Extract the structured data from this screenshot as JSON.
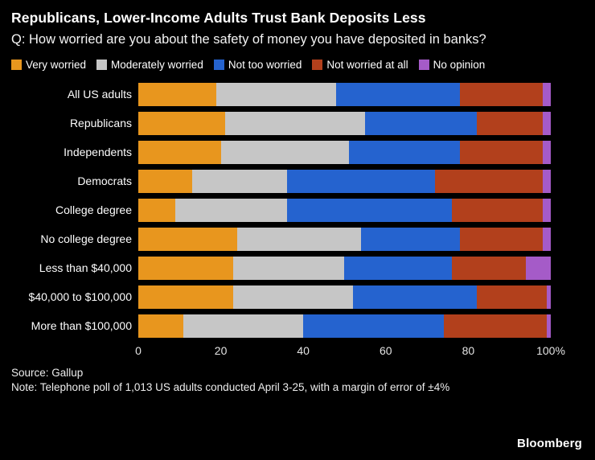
{
  "header": {
    "title": "Republicans, Lower-Income Adults Trust Bank Deposits Less",
    "subtitle": "Q: How worried are you about the safety of money you have deposited in banks?"
  },
  "colors": {
    "very_worried": "#E8961E",
    "moderately_worried": "#C6C6C6",
    "not_too_worried": "#2563CF",
    "not_worried_at_all": "#B2401C",
    "no_opinion": "#A55BC8",
    "background": "#000000",
    "text": "#FFFFFF"
  },
  "chart_data": {
    "type": "bar",
    "orientation": "horizontal",
    "stacked": true,
    "title": "Republicans, Lower-Income Adults Trust Bank Deposits Less",
    "xlabel": "",
    "ylabel": "",
    "xlim": [
      0,
      100
    ],
    "x_ticks": [
      "0",
      "20",
      "40",
      "60",
      "80",
      "100%"
    ],
    "legend_position": "top",
    "grid": false,
    "categories": [
      "All US adults",
      "Republicans",
      "Independents",
      "Democrats",
      "College degree",
      "No college degree",
      "Less than $40,000",
      "$40,000 to $100,000",
      "More than $100,000"
    ],
    "series": [
      {
        "name": "Very worried",
        "color_key": "very_worried",
        "values": [
          19,
          21,
          20,
          13,
          9,
          24,
          23,
          23,
          11
        ]
      },
      {
        "name": "Moderately worried",
        "color_key": "moderately_worried",
        "values": [
          29,
          34,
          31,
          23,
          27,
          30,
          27,
          29,
          29
        ]
      },
      {
        "name": "Not too worried",
        "color_key": "not_too_worried",
        "values": [
          30,
          27,
          27,
          36,
          40,
          24,
          26,
          30,
          34
        ]
      },
      {
        "name": "Not worried at all",
        "color_key": "not_worried_at_all",
        "values": [
          20,
          16,
          20,
          26,
          22,
          20,
          18,
          17,
          25
        ]
      },
      {
        "name": "No opinion",
        "color_key": "no_opinion",
        "values": [
          2,
          2,
          2,
          2,
          2,
          2,
          6,
          1,
          1
        ]
      }
    ]
  },
  "footer": {
    "source": "Source: Gallup",
    "note": "Note: Telephone poll of 1,013 US adults conducted April 3-25, with a margin of error of ±4%",
    "brand": "Bloomberg"
  }
}
